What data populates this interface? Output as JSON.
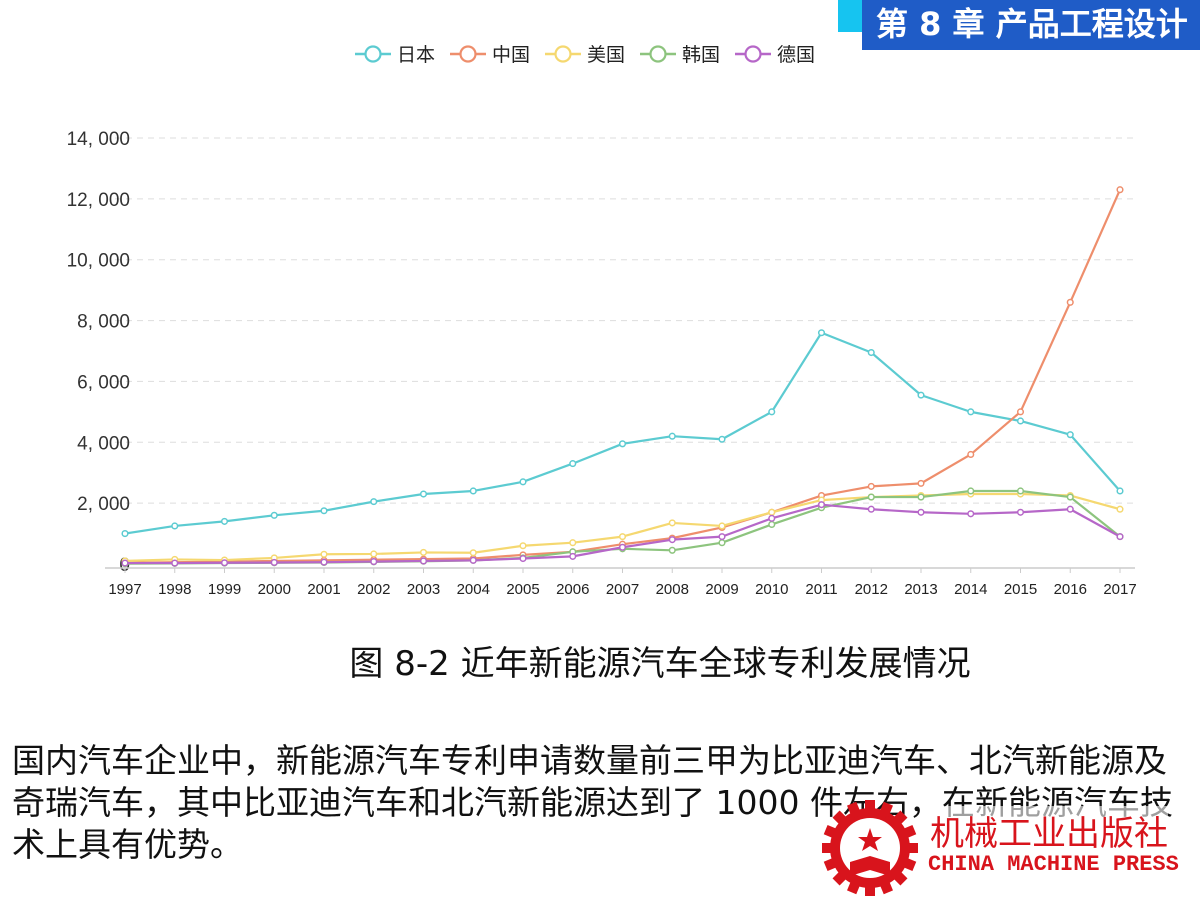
{
  "header": {
    "title": "第 8 章 产品工程设计"
  },
  "caption": "图 8-2  近年新能源汽车全球专利发展情况",
  "body_text": "国内汽车企业中，新能源汽车专利申请数量前三甲为比亚迪汽车、北汽新能源及奇瑞汽车，其中比亚迪汽车和北汽新能源达到了 1000 件左右，在新能源汽车技术上具有优势。",
  "publisher": {
    "name_cn": "机械工业出版社",
    "name_en": "CHINA MACHINE PRESS",
    "color": "#d8141c"
  },
  "chart_data": {
    "type": "line",
    "x": [
      "1997",
      "1998",
      "1999",
      "2000",
      "2001",
      "2002",
      "2003",
      "2004",
      "2005",
      "2006",
      "2007",
      "2008",
      "2009",
      "2010",
      "2011",
      "2012",
      "2013",
      "2014",
      "2015",
      "2016",
      "2017"
    ],
    "ylim": [
      0,
      14000
    ],
    "yticks": [
      0,
      2000,
      4000,
      6000,
      8000,
      10000,
      12000,
      14000
    ],
    "ytick_labels": [
      "0",
      "2, 000",
      "4, 000",
      "6, 000",
      "8, 000",
      "10, 000",
      "12, 000",
      "14, 000"
    ],
    "grid": true,
    "legend_position": "top",
    "series": [
      {
        "name": "日本",
        "color": "#5ccbd1",
        "values": [
          1000,
          1250,
          1400,
          1600,
          1750,
          2050,
          2300,
          2400,
          2700,
          3300,
          3950,
          4200,
          4100,
          5000,
          7600,
          6950,
          5550,
          5000,
          4700,
          4250,
          2400
        ]
      },
      {
        "name": "中国",
        "color": "#ee8e6c",
        "values": [
          40,
          60,
          80,
          100,
          120,
          140,
          160,
          180,
          300,
          400,
          650,
          850,
          1200,
          1700,
          2250,
          2550,
          2650,
          3600,
          5000,
          8600,
          12300
        ]
      },
      {
        "name": "美国",
        "color": "#f5d870",
        "values": [
          100,
          150,
          130,
          200,
          320,
          330,
          380,
          370,
          600,
          700,
          900,
          1350,
          1250,
          1700,
          2100,
          2200,
          2250,
          2300,
          2300,
          2250,
          1800
        ]
      },
      {
        "name": "韩国",
        "color": "#8dc47e",
        "values": [
          10,
          20,
          30,
          40,
          50,
          70,
          90,
          120,
          200,
          400,
          500,
          450,
          700,
          1300,
          1850,
          2200,
          2200,
          2400,
          2400,
          2200,
          900
        ]
      },
      {
        "name": "德国",
        "color": "#b667c8",
        "values": [
          30,
          30,
          40,
          50,
          60,
          80,
          100,
          120,
          180,
          250,
          550,
          800,
          900,
          1500,
          1950,
          1800,
          1700,
          1650,
          1700,
          1800,
          900
        ]
      }
    ]
  }
}
